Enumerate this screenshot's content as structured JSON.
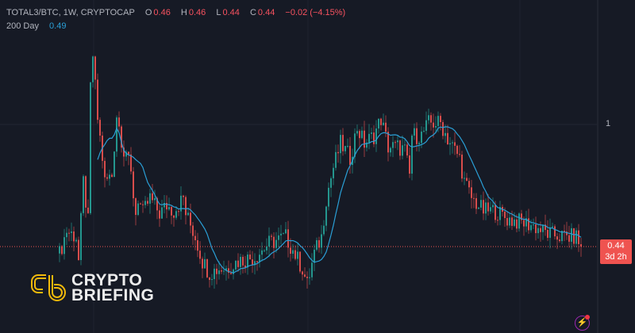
{
  "legend": {
    "symbol": "TOTAL3/BTC, 1W, CRYPTOCAP",
    "o_label": "O",
    "o": "0.46",
    "h_label": "H",
    "h": "0.46",
    "l_label": "L",
    "l": "0.44",
    "c_label": "C",
    "c": "0.44",
    "change": "−0.02 (−4.15%)",
    "ma_label": "200 Day",
    "ma_value": "0.49"
  },
  "price_axis": {
    "tick": "1"
  },
  "last_price": {
    "value": "0.44",
    "countdown": "3d 2h"
  },
  "logo": {
    "line1": "CRYPTO",
    "line2": "BRIEFING"
  },
  "colors": {
    "up": "#26a69a",
    "down": "#ef5350",
    "ma": "#2a9fd6",
    "background": "#161a25"
  },
  "icons": [
    "lightning-icon"
  ],
  "chart_data": {
    "type": "candlestick",
    "title": "TOTAL3/BTC, 1W, CRYPTOCAP",
    "interval": "1W",
    "y_scale": "log",
    "ylim": [
      0.31,
      1.75
    ],
    "grid": true,
    "y_ticks": [
      1
    ],
    "last_close": 0.44,
    "close_path_keypoints": [
      [
        0,
        0.42
      ],
      [
        3,
        0.49
      ],
      [
        7,
        0.47
      ],
      [
        8,
        0.4
      ],
      [
        10,
        0.68
      ],
      [
        12,
        0.52
      ],
      [
        13,
        1.28
      ],
      [
        14,
        1.59
      ],
      [
        16,
        1.04
      ],
      [
        18,
        0.8
      ],
      [
        19,
        0.68
      ],
      [
        22,
        0.71
      ],
      [
        24,
        1.07
      ],
      [
        27,
        0.84
      ],
      [
        28,
        0.84
      ],
      [
        30,
        0.71
      ],
      [
        32,
        0.55
      ],
      [
        33,
        0.61
      ],
      [
        35,
        0.55
      ],
      [
        38,
        0.61
      ],
      [
        42,
        0.55
      ],
      [
        45,
        0.58
      ],
      [
        48,
        0.56
      ],
      [
        52,
        0.61
      ],
      [
        53,
        0.55
      ],
      [
        57,
        0.47
      ],
      [
        60,
        0.4
      ],
      [
        63,
        0.37
      ],
      [
        67,
        0.38
      ],
      [
        70,
        0.38
      ],
      [
        75,
        0.4
      ],
      [
        82,
        0.41
      ],
      [
        88,
        0.45
      ],
      [
        95,
        0.47
      ],
      [
        98,
        0.43
      ],
      [
        102,
        0.38
      ],
      [
        104,
        0.34
      ],
      [
        107,
        0.42
      ],
      [
        110,
        0.47
      ],
      [
        112,
        0.61
      ],
      [
        115,
        0.75
      ],
      [
        118,
        0.88
      ],
      [
        122,
        0.8
      ],
      [
        125,
        0.98
      ],
      [
        128,
        0.88
      ],
      [
        132,
        0.93
      ],
      [
        135,
        1.04
      ],
      [
        138,
        0.86
      ],
      [
        142,
        0.86
      ],
      [
        145,
        0.84
      ],
      [
        147,
        0.71
      ],
      [
        148,
        0.93
      ],
      [
        152,
        0.93
      ],
      [
        155,
        1.01
      ],
      [
        160,
        1.01
      ],
      [
        163,
        0.91
      ],
      [
        167,
        0.82
      ],
      [
        168,
        0.8
      ],
      [
        170,
        0.68
      ],
      [
        173,
        0.61
      ],
      [
        178,
        0.56
      ],
      [
        183,
        0.56
      ],
      [
        188,
        0.53
      ],
      [
        193,
        0.52
      ],
      [
        198,
        0.51
      ],
      [
        205,
        0.48
      ],
      [
        212,
        0.47
      ],
      [
        217,
        0.47
      ],
      [
        219,
        0.44
      ]
    ],
    "series": [
      {
        "name": "200 Day",
        "type": "moving-average",
        "last": 0.49
      }
    ]
  }
}
